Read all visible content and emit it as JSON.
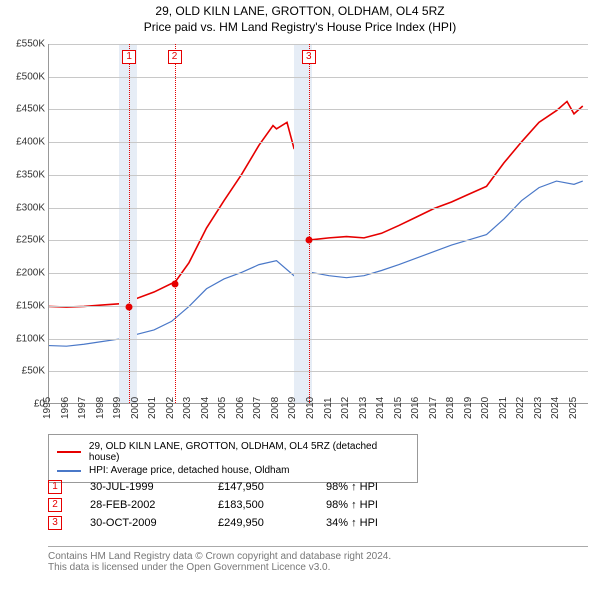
{
  "title_line1": "29, OLD KILN LANE, GROTTON, OLDHAM, OL4 5RZ",
  "title_line2": "Price paid vs. HM Land Registry's House Price Index (HPI)",
  "chart": {
    "type": "line",
    "x_min": 1995,
    "x_max": 2025.8,
    "y_min": 0,
    "y_max": 550000,
    "y_step": 50000,
    "y_ticks": [
      "£0",
      "£50K",
      "£100K",
      "£150K",
      "£200K",
      "£250K",
      "£300K",
      "£350K",
      "£400K",
      "£450K",
      "£500K",
      "£550K"
    ],
    "x_ticks": [
      1995,
      1996,
      1997,
      1998,
      1999,
      2000,
      2001,
      2002,
      2003,
      2004,
      2005,
      2006,
      2007,
      2008,
      2009,
      2010,
      2011,
      2012,
      2013,
      2014,
      2015,
      2016,
      2017,
      2018,
      2019,
      2020,
      2021,
      2022,
      2023,
      2024,
      2025
    ],
    "grid_color": "#c8c8c8",
    "band_color": "#e6edf6",
    "band_years": [
      [
        1999,
        2000
      ],
      [
        2009,
        2010
      ]
    ],
    "series": {
      "property": {
        "color": "#e60000",
        "width": 1.6,
        "points": [
          [
            1995,
            148000
          ],
          [
            1996,
            147000
          ],
          [
            1997,
            148000
          ],
          [
            1998,
            150000
          ],
          [
            1999,
            152000
          ],
          [
            1999.57,
            147950
          ],
          [
            2000,
            160000
          ],
          [
            2001,
            170000
          ],
          [
            2002,
            183000
          ],
          [
            2002.16,
            183500
          ],
          [
            2003,
            215000
          ],
          [
            2004,
            268000
          ],
          [
            2005,
            310000
          ],
          [
            2006,
            350000
          ],
          [
            2007,
            395000
          ],
          [
            2007.8,
            425000
          ],
          [
            2008,
            420000
          ],
          [
            2008.6,
            430000
          ],
          [
            2009,
            390000
          ],
          [
            2009.6,
            380000
          ],
          [
            2009.82,
            249950
          ],
          [
            2009.84,
            246000
          ],
          [
            2010,
            250000
          ],
          [
            2011,
            253000
          ],
          [
            2012,
            255000
          ],
          [
            2013,
            253000
          ],
          [
            2014,
            260000
          ],
          [
            2015,
            272000
          ],
          [
            2016,
            285000
          ],
          [
            2017,
            298000
          ],
          [
            2018,
            308000
          ],
          [
            2019,
            320000
          ],
          [
            2020,
            332000
          ],
          [
            2021,
            368000
          ],
          [
            2022,
            400000
          ],
          [
            2023,
            430000
          ],
          [
            2024,
            448000
          ],
          [
            2024.6,
            462000
          ],
          [
            2025,
            443000
          ],
          [
            2025.5,
            455000
          ]
        ]
      },
      "hpi": {
        "color": "#4a78c8",
        "width": 1.2,
        "points": [
          [
            1995,
            88000
          ],
          [
            1996,
            87000
          ],
          [
            1997,
            90000
          ],
          [
            1998,
            94000
          ],
          [
            1999,
            98000
          ],
          [
            2000,
            105000
          ],
          [
            2001,
            112000
          ],
          [
            2002,
            125000
          ],
          [
            2003,
            148000
          ],
          [
            2004,
            175000
          ],
          [
            2005,
            190000
          ],
          [
            2006,
            200000
          ],
          [
            2007,
            212000
          ],
          [
            2008,
            218000
          ],
          [
            2009,
            195000
          ],
          [
            2010,
            200000
          ],
          [
            2011,
            195000
          ],
          [
            2012,
            192000
          ],
          [
            2013,
            195000
          ],
          [
            2014,
            203000
          ],
          [
            2015,
            212000
          ],
          [
            2016,
            222000
          ],
          [
            2017,
            232000
          ],
          [
            2018,
            242000
          ],
          [
            2019,
            250000
          ],
          [
            2020,
            258000
          ],
          [
            2021,
            282000
          ],
          [
            2022,
            310000
          ],
          [
            2023,
            330000
          ],
          [
            2024,
            340000
          ],
          [
            2025,
            335000
          ],
          [
            2025.5,
            340000
          ]
        ]
      }
    },
    "markers": [
      {
        "n": "1",
        "x": 1999.57,
        "y": 147950
      },
      {
        "n": "2",
        "x": 2002.16,
        "y": 183500
      },
      {
        "n": "3",
        "x": 2009.82,
        "y": 249950
      }
    ]
  },
  "legend": {
    "items": [
      {
        "color": "#e60000",
        "label": "29, OLD KILN LANE, GROTTON, OLDHAM, OL4 5RZ (detached house)"
      },
      {
        "color": "#4a78c8",
        "label": "HPI: Average price, detached house, Oldham"
      }
    ]
  },
  "events": [
    {
      "n": "1",
      "date": "30-JUL-1999",
      "price": "£147,950",
      "pct": "98% ↑ HPI"
    },
    {
      "n": "2",
      "date": "28-FEB-2002",
      "price": "£183,500",
      "pct": "98% ↑ HPI"
    },
    {
      "n": "3",
      "date": "30-OCT-2009",
      "price": "£249,950",
      "pct": "34% ↑ HPI"
    }
  ],
  "footer1": "Contains HM Land Registry data © Crown copyright and database right 2024.",
  "footer2": "This data is licensed under the Open Government Licence v3.0."
}
